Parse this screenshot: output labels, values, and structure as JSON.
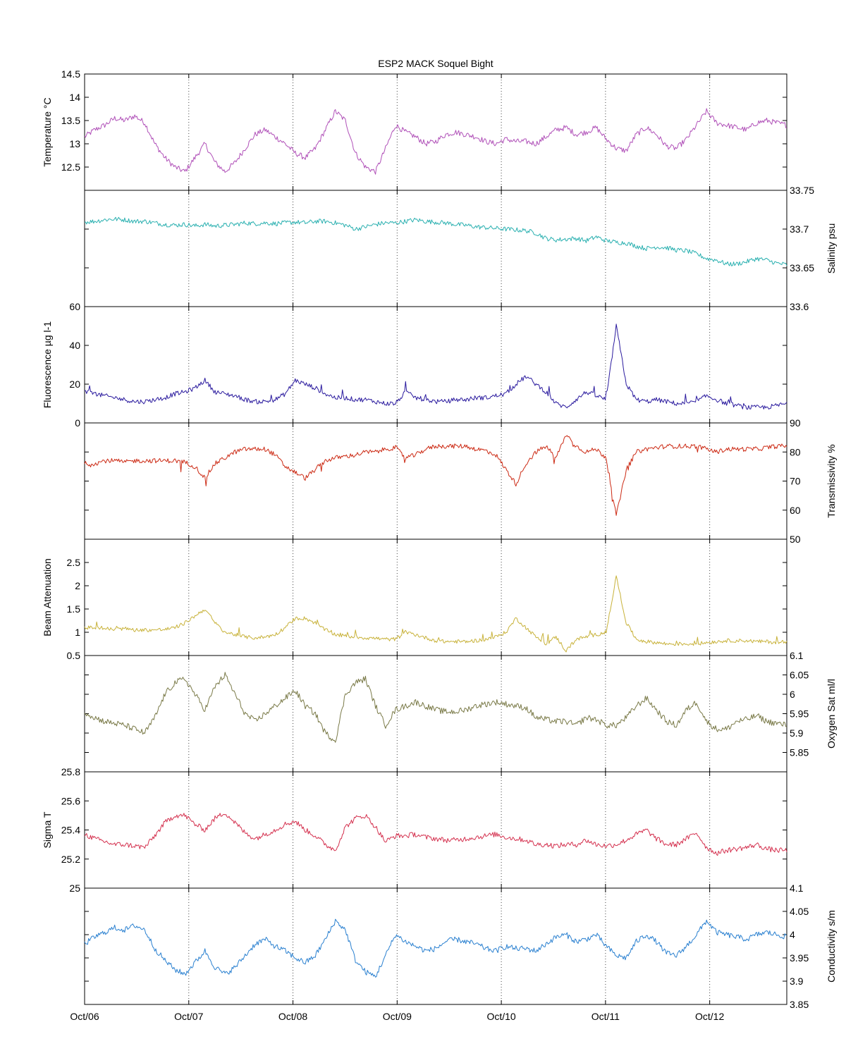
{
  "chart_data": {
    "type": "line",
    "title": "ESP2 MACK  Soquel Bight",
    "x_ticks": [
      "Oct/06",
      "Oct/07",
      "Oct/08",
      "Oct/09",
      "Oct/10",
      "Oct/11",
      "Oct/12"
    ],
    "x_range_days": [
      0,
      6.74
    ],
    "panels": [
      {
        "ylabel": "Temperature °C",
        "axis_side": "left",
        "color": "#b050b8",
        "ylim": [
          12,
          14.5
        ],
        "ticks": [
          12.5,
          13,
          13.5,
          14,
          14.5
        ],
        "noise": 0.06,
        "spike_sign": 0,
        "values": [
          13.15,
          13.3,
          13.4,
          13.55,
          13.5,
          13.6,
          13.45,
          13.0,
          12.7,
          12.5,
          12.4,
          12.7,
          13.0,
          12.6,
          12.4,
          12.6,
          12.9,
          13.2,
          13.3,
          13.15,
          13.0,
          12.8,
          12.7,
          12.9,
          13.3,
          13.7,
          13.5,
          12.8,
          12.5,
          12.4,
          12.9,
          13.4,
          13.25,
          13.15,
          13.0,
          13.05,
          13.2,
          13.25,
          13.2,
          13.15,
          13.05,
          13.0,
          13.1,
          13.05,
          13.05,
          13.0,
          13.15,
          13.3,
          13.35,
          13.2,
          13.25,
          13.35,
          13.1,
          12.9,
          12.85,
          13.2,
          13.35,
          13.2,
          12.95,
          12.9,
          13.1,
          13.4,
          13.7,
          13.45,
          13.4,
          13.35,
          13.3,
          13.45,
          13.5,
          13.45,
          13.4
        ]
      },
      {
        "ylabel": "Salinity psu",
        "axis_side": "right",
        "color": "#2ab0b0",
        "ylim": [
          33.6,
          33.75
        ],
        "ticks": [
          33.6,
          33.65,
          33.7,
          33.75
        ],
        "noise": 0.003,
        "spike_sign": 0,
        "values": [
          33.709,
          33.71,
          33.712,
          33.713,
          33.712,
          33.71,
          33.71,
          33.708,
          33.706,
          33.705,
          33.706,
          33.704,
          33.706,
          33.704,
          33.705,
          33.706,
          33.708,
          33.707,
          33.708,
          33.707,
          33.708,
          33.709,
          33.708,
          33.71,
          33.71,
          33.708,
          33.705,
          33.7,
          33.703,
          33.706,
          33.708,
          33.708,
          33.71,
          33.712,
          33.71,
          33.709,
          33.708,
          33.706,
          33.705,
          33.703,
          33.702,
          33.701,
          33.7,
          33.699,
          33.698,
          33.695,
          33.688,
          33.686,
          33.687,
          33.688,
          33.685,
          33.69,
          33.685,
          33.683,
          33.682,
          33.678,
          33.675,
          33.677,
          33.676,
          33.673,
          33.672,
          33.668,
          33.662,
          33.66,
          33.655,
          33.655,
          33.658,
          33.662,
          33.66,
          33.656,
          33.654
        ]
      },
      {
        "ylabel": "Fluorescence µg l-1",
        "axis_side": "left",
        "color": "#2a1a9e",
        "ylim": [
          0,
          60
        ],
        "ticks": [
          0,
          20,
          40,
          60
        ],
        "noise": 1.2,
        "spike_sign": 1,
        "values": [
          16,
          15,
          14,
          13,
          12,
          11,
          11,
          12,
          13,
          15,
          16,
          18,
          22,
          16,
          15,
          14,
          12,
          11,
          11,
          12,
          15,
          22,
          20,
          18,
          15,
          13,
          13,
          12,
          12,
          11,
          10,
          10,
          16,
          13,
          12,
          11,
          11,
          12,
          12,
          13,
          13,
          14,
          15,
          20,
          24,
          20,
          16,
          10,
          8,
          12,
          16,
          14,
          12,
          50,
          20,
          12,
          11,
          12,
          11,
          10,
          10,
          11,
          14,
          12,
          10,
          9,
          8,
          8,
          8,
          9,
          10
        ]
      },
      {
        "ylabel": "Transmissivity %",
        "axis_side": "right",
        "color": "#cc2a14",
        "ylim": [
          50,
          90
        ],
        "ticks": [
          50,
          60,
          70,
          80,
          90
        ],
        "noise": 0.8,
        "spike_sign": -1,
        "values": [
          76,
          76,
          77,
          77,
          76.5,
          77,
          77,
          77,
          77,
          77,
          76.5,
          75,
          71,
          76,
          78,
          80,
          81,
          81,
          81,
          79,
          75,
          73,
          71,
          74,
          77,
          78,
          78.5,
          79,
          80,
          80,
          81,
          81.5,
          78,
          79,
          81,
          82,
          82,
          82,
          82,
          81,
          80.5,
          79,
          74,
          69,
          76,
          80,
          82,
          78,
          86,
          82,
          80,
          81,
          78,
          58,
          74,
          80,
          81,
          81.5,
          82,
          82,
          82,
          82,
          81,
          80,
          81,
          81,
          81,
          81,
          81.5,
          82,
          82
        ]
      },
      {
        "ylabel": "Beam Attenuation",
        "axis_side": "left",
        "color": "#c8b23a",
        "ylim": [
          0.5,
          3
        ],
        "ticks": [
          0.5,
          1,
          1.5,
          2,
          2.5
        ],
        "noise": 0.04,
        "spike_sign": 1,
        "values": [
          1.1,
          1.1,
          1.08,
          1.06,
          1.08,
          1.05,
          1.05,
          1.05,
          1.06,
          1.1,
          1.2,
          1.35,
          1.5,
          1.2,
          1.0,
          0.95,
          0.9,
          0.88,
          0.9,
          0.95,
          1.1,
          1.3,
          1.3,
          1.2,
          1.05,
          0.95,
          0.92,
          0.9,
          0.88,
          0.87,
          0.85,
          0.85,
          1.0,
          0.95,
          0.88,
          0.82,
          0.8,
          0.8,
          0.8,
          0.82,
          0.85,
          0.9,
          1.0,
          1.3,
          1.1,
          0.9,
          0.75,
          0.9,
          0.6,
          0.85,
          0.9,
          0.95,
          1.0,
          2.2,
          1.2,
          0.85,
          0.8,
          0.78,
          0.75,
          0.75,
          0.75,
          0.75,
          0.78,
          0.8,
          0.82,
          0.82,
          0.82,
          0.8,
          0.8,
          0.78,
          0.78
        ]
      },
      {
        "ylabel": "Oxygen Sat ml/l",
        "axis_side": "right",
        "color": "#7a7a48",
        "ylim": [
          5.8,
          6.1
        ],
        "ticks": [
          5.85,
          5.9,
          5.95,
          6,
          6.05,
          6.1
        ],
        "noise": 0.008,
        "spike_sign": 0,
        "values": [
          5.955,
          5.94,
          5.93,
          5.925,
          5.92,
          5.91,
          5.9,
          5.94,
          6.0,
          6.03,
          6.04,
          6.0,
          5.96,
          6.02,
          6.05,
          6.0,
          5.95,
          5.93,
          5.95,
          5.97,
          5.99,
          6.01,
          5.97,
          5.95,
          5.9,
          5.88,
          6.0,
          6.03,
          6.04,
          5.97,
          5.92,
          5.96,
          5.97,
          5.98,
          5.97,
          5.96,
          5.955,
          5.955,
          5.96,
          5.97,
          5.975,
          5.98,
          5.975,
          5.97,
          5.965,
          5.94,
          5.935,
          5.93,
          5.93,
          5.92,
          5.94,
          5.935,
          5.92,
          5.92,
          5.94,
          5.97,
          5.99,
          5.96,
          5.93,
          5.92,
          5.96,
          5.98,
          5.93,
          5.91,
          5.91,
          5.93,
          5.935,
          5.945,
          5.93,
          5.925,
          5.92
        ]
      },
      {
        "ylabel": "Sigma T",
        "axis_side": "left",
        "color": "#d4304e",
        "ylim": [
          25,
          25.8
        ],
        "ticks": [
          25,
          25.2,
          25.4,
          25.6,
          25.8
        ],
        "noise": 0.018,
        "spike_sign": 0,
        "values": [
          25.37,
          25.34,
          25.32,
          25.3,
          25.3,
          25.29,
          25.28,
          25.36,
          25.45,
          25.5,
          25.5,
          25.44,
          25.4,
          25.48,
          25.52,
          25.45,
          25.38,
          25.34,
          25.37,
          25.4,
          25.44,
          25.46,
          25.4,
          25.36,
          25.3,
          25.26,
          25.42,
          25.48,
          25.5,
          25.42,
          25.32,
          25.36,
          25.36,
          25.37,
          25.35,
          25.34,
          25.33,
          25.33,
          25.34,
          25.35,
          25.36,
          25.37,
          25.35,
          25.34,
          25.33,
          25.3,
          25.3,
          25.29,
          25.3,
          25.3,
          25.33,
          25.3,
          25.29,
          25.3,
          25.33,
          25.37,
          25.4,
          25.34,
          25.3,
          25.3,
          25.34,
          25.38,
          25.28,
          25.24,
          25.26,
          25.27,
          25.28,
          25.3,
          25.27,
          25.26,
          25.26
        ]
      },
      {
        "ylabel": "Conductivity s/m",
        "axis_side": "right",
        "color": "#2a80d0",
        "ylim": [
          3.85,
          4.1
        ],
        "ticks": [
          3.85,
          3.9,
          3.95,
          4,
          4.05,
          4.1
        ],
        "noise": 0.006,
        "spike_sign": 0,
        "values": [
          3.98,
          3.995,
          4.005,
          4.015,
          4.01,
          4.02,
          4.01,
          3.97,
          3.945,
          3.925,
          3.915,
          3.94,
          3.965,
          3.93,
          3.915,
          3.93,
          3.955,
          3.98,
          3.99,
          3.975,
          3.965,
          3.95,
          3.94,
          3.955,
          3.99,
          4.03,
          4.01,
          3.945,
          3.92,
          3.91,
          3.955,
          4.0,
          3.985,
          3.975,
          3.965,
          3.97,
          3.985,
          3.99,
          3.985,
          3.98,
          3.97,
          3.965,
          3.975,
          3.97,
          3.97,
          3.965,
          3.98,
          3.995,
          4.0,
          3.985,
          3.99,
          4.0,
          3.975,
          3.955,
          3.95,
          3.985,
          4.0,
          3.985,
          3.96,
          3.955,
          3.975,
          4.0,
          4.03,
          4.005,
          4.0,
          3.995,
          3.99,
          4.0,
          4.005,
          4.0,
          3.995
        ]
      }
    ]
  }
}
